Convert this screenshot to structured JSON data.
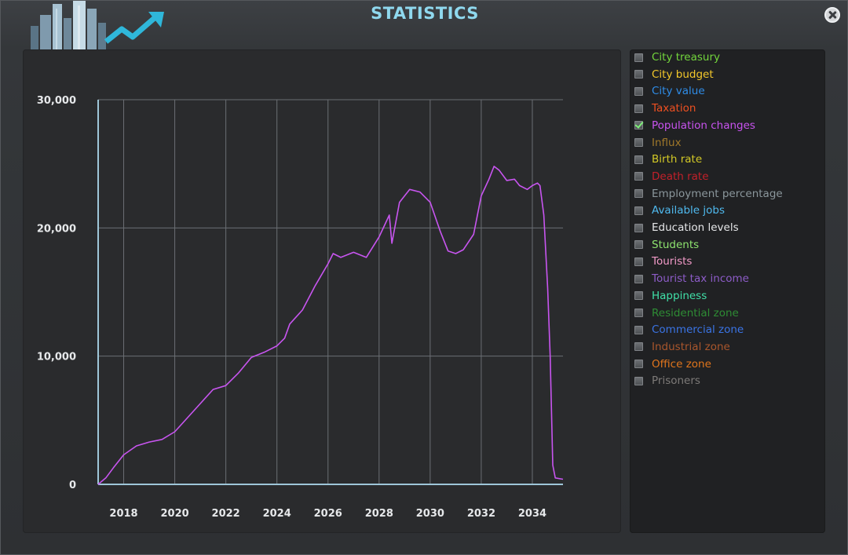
{
  "window": {
    "title": "STATISTICS"
  },
  "colors": {
    "title": "#8fd8ee",
    "gridline": "#6b6f74",
    "axis": "#9ec6d8",
    "series_line": "#c855f0"
  },
  "legend": [
    {
      "label": "City treasury",
      "color": "#73d63c",
      "checked": false
    },
    {
      "label": "City budget",
      "color": "#f3c82b",
      "checked": false
    },
    {
      "label": "City value",
      "color": "#2f8de8",
      "checked": false
    },
    {
      "label": "Taxation",
      "color": "#ee5021",
      "checked": false
    },
    {
      "label": "Population changes",
      "color": "#c853ef",
      "checked": true
    },
    {
      "label": "Influx",
      "color": "#a0782a",
      "checked": false
    },
    {
      "label": "Birth rate",
      "color": "#d3c926",
      "checked": false
    },
    {
      "label": "Death rate",
      "color": "#c3202a",
      "checked": false
    },
    {
      "label": "Employment percentage",
      "color": "#8b979c",
      "checked": false
    },
    {
      "label": "Available jobs",
      "color": "#4fb9ee",
      "checked": false
    },
    {
      "label": "Education levels",
      "color": "#e6e7e9",
      "checked": false
    },
    {
      "label": "Students",
      "color": "#8ee46f",
      "checked": false
    },
    {
      "label": "Tourists",
      "color": "#f29ac8",
      "checked": false
    },
    {
      "label": "Tourist tax income",
      "color": "#8d5cc8",
      "checked": false
    },
    {
      "label": "Happiness",
      "color": "#40e0a8",
      "checked": false
    },
    {
      "label": "Residential zone",
      "color": "#2e8c34",
      "checked": false
    },
    {
      "label": "Commercial zone",
      "color": "#3a74e5",
      "checked": false
    },
    {
      "label": "Industrial zone",
      "color": "#a9562c",
      "checked": false
    },
    {
      "label": "Office zone",
      "color": "#e0751c",
      "checked": false
    },
    {
      "label": "Prisoners",
      "color": "#7d7a78",
      "checked": false
    }
  ],
  "chart_data": {
    "type": "line",
    "title": "",
    "xlabel": "",
    "ylabel": "",
    "xlim": [
      2017.0,
      2035.2
    ],
    "ylim": [
      0,
      30000
    ],
    "x_ticks": [
      2018,
      2020,
      2022,
      2024,
      2026,
      2028,
      2030,
      2032,
      2034
    ],
    "x_tick_labels": [
      "2018",
      "2020",
      "2022",
      "2024",
      "2026",
      "2028",
      "2030",
      "2032",
      "2034"
    ],
    "y_ticks": [
      0,
      10000,
      20000,
      30000
    ],
    "y_tick_labels": [
      "0",
      "10,000",
      "20,000",
      "30,000"
    ],
    "grid": true,
    "series": [
      {
        "color": "#c855f0",
        "x": [
          2017.0,
          2017.3,
          2017.6,
          2018.0,
          2018.5,
          2019.0,
          2019.5,
          2020.0,
          2020.5,
          2021.0,
          2021.5,
          2022.0,
          2022.5,
          2023.0,
          2023.5,
          2024.0,
          2024.3,
          2024.5,
          2025.0,
          2025.5,
          2026.0,
          2026.2,
          2026.5,
          2027.0,
          2027.5,
          2028.0,
          2028.4,
          2028.5,
          2028.8,
          2029.2,
          2029.6,
          2030.0,
          2030.4,
          2030.7,
          2031.0,
          2031.3,
          2031.7,
          2032.0,
          2032.3,
          2032.5,
          2032.7,
          2033.0,
          2033.3,
          2033.5,
          2033.8,
          2034.0,
          2034.2,
          2034.3,
          2034.45,
          2034.6,
          2034.7,
          2034.8,
          2034.9,
          2035.2
        ],
        "y": [
          0,
          500,
          1300,
          2300,
          3000,
          3300,
          3500,
          4100,
          5200,
          6300,
          7400,
          7700,
          8700,
          9900,
          10300,
          10800,
          11400,
          12500,
          13600,
          15500,
          17200,
          18000,
          17700,
          18100,
          17700,
          19300,
          21000,
          18800,
          22000,
          23000,
          22800,
          22000,
          19700,
          18200,
          18000,
          18300,
          19500,
          22500,
          23800,
          24800,
          24500,
          23700,
          23800,
          23300,
          23000,
          23300,
          23500,
          23300,
          21000,
          15300,
          10000,
          1500,
          500,
          400
        ]
      }
    ]
  }
}
